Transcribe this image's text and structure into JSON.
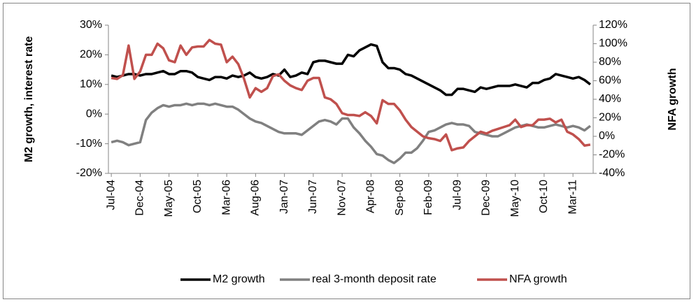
{
  "chart_data": {
    "type": "line",
    "y_label": "M2 growth, interest rate",
    "y2_label": "NFA growth",
    "categories": [
      "Jul-04",
      null,
      null,
      null,
      null,
      "Dec-04",
      null,
      null,
      null,
      null,
      "May-05",
      null,
      null,
      null,
      null,
      "Oct-05",
      null,
      null,
      null,
      null,
      "Mar-06",
      null,
      null,
      null,
      null,
      "Aug-06",
      null,
      null,
      null,
      null,
      "Jan-07",
      null,
      null,
      null,
      null,
      "Jun-07",
      null,
      null,
      null,
      null,
      "Nov-07",
      null,
      null,
      null,
      null,
      "Apr-08",
      null,
      null,
      null,
      null,
      "Sep-08",
      null,
      null,
      null,
      null,
      "Feb-09",
      null,
      null,
      null,
      null,
      "Jul-09",
      null,
      null,
      null,
      null,
      "Dec-09",
      null,
      null,
      null,
      null,
      "May-10",
      null,
      null,
      null,
      null,
      "Oct-10",
      null,
      null,
      null,
      null,
      "Mar-11",
      null,
      null,
      null
    ],
    "series": [
      {
        "name": "M2 growth",
        "color": "#000000",
        "values": [
          13,
          12.5,
          13,
          13.5,
          13.5,
          13,
          13.5,
          13.5,
          14,
          14.5,
          13.5,
          13.5,
          14.5,
          14.5,
          14,
          12.5,
          12,
          11.5,
          12.5,
          12.5,
          12,
          13,
          12.5,
          13,
          14,
          12.5,
          12,
          12.5,
          13.5,
          13,
          15,
          12.5,
          13,
          14,
          13.5,
          17.5,
          18,
          18,
          17.5,
          17,
          17,
          20,
          19.5,
          21.5,
          22.5,
          23.5,
          23,
          17.5,
          15.5,
          15.5,
          15,
          13.5,
          13,
          12,
          11,
          10,
          9,
          8,
          6.5,
          6.5,
          8.5,
          8.5,
          8,
          7.5,
          9,
          8.5,
          9,
          9.5,
          9.5,
          9.5,
          10,
          9.5,
          9,
          10.5,
          10.5,
          11.5,
          12,
          13.5,
          13,
          12.5,
          12,
          12.5,
          11.5,
          10
        ]
      },
      {
        "name": "real 3-month deposit rate",
        "color": "#808080",
        "values": [
          -9.5,
          -9,
          -9.5,
          -10.5,
          -10,
          -9.5,
          -2,
          0.5,
          2,
          3,
          2.5,
          3,
          3,
          3.5,
          3,
          3.5,
          3.5,
          3,
          3.5,
          3,
          2.5,
          2.5,
          1.5,
          0,
          -1.5,
          -2.5,
          -3,
          -4,
          -5,
          -6,
          -6.5,
          -6.5,
          -6.5,
          -7,
          -5.5,
          -4,
          -2.5,
          -2,
          -2.5,
          -3.5,
          -1.5,
          -1.5,
          -4.5,
          -6.5,
          -9,
          -11,
          -13.5,
          -14,
          -15.5,
          -16.5,
          -15,
          -13,
          -13,
          -11.5,
          -9,
          -6,
          -5.5,
          -4.5,
          -3.5,
          -3,
          -3.5,
          -3.5,
          -4,
          -6,
          -6.5,
          -7,
          -7.5,
          -7.5,
          -6.5,
          -5.5,
          -4.5,
          -4,
          -3.5,
          -4,
          -4.5,
          -4.5,
          -4,
          -3.5,
          -4,
          -4.5,
          -4,
          -4.5,
          -5.5,
          -4
        ]
      },
      {
        "name": "NFA growth",
        "color": "#c0504d",
        "axis": "y2",
        "values": [
          63,
          62,
          66,
          98,
          62,
          70,
          88,
          88,
          100,
          95,
          82,
          80,
          98,
          88,
          96,
          97,
          97,
          104,
          100,
          99,
          80,
          86,
          78,
          62,
          42,
          52,
          48,
          52,
          65,
          67,
          60,
          55,
          52,
          50,
          60,
          63,
          63,
          42,
          40,
          35,
          25,
          23,
          23,
          22,
          26,
          22,
          14,
          39,
          35,
          35,
          28,
          18,
          10,
          5,
          0,
          -2,
          -3,
          -5,
          2,
          -15,
          -13,
          -12,
          -5,
          0,
          5,
          3,
          6,
          8,
          10,
          12,
          18,
          10,
          12,
          12,
          18,
          18,
          19,
          15,
          18,
          5,
          2,
          -3,
          -10,
          -9
        ]
      }
    ],
    "ylim": [
      -20,
      30
    ],
    "yticks": [
      {
        "value": -20,
        "label": "-20%"
      },
      {
        "value": -10,
        "label": "-10%"
      },
      {
        "value": 0,
        "label": "0%"
      },
      {
        "value": 10,
        "label": "10%"
      },
      {
        "value": 20,
        "label": "20%"
      },
      {
        "value": 30,
        "label": "30%"
      }
    ],
    "y2lim": [
      -40,
      120
    ],
    "y2ticks": [
      {
        "value": -40,
        "label": "-40%"
      },
      {
        "value": -20,
        "label": "-20%"
      },
      {
        "value": 0,
        "label": "0%"
      },
      {
        "value": 20,
        "label": "20%"
      },
      {
        "value": 40,
        "label": "40%"
      },
      {
        "value": 60,
        "label": "60%"
      },
      {
        "value": 80,
        "label": "80%"
      },
      {
        "value": 100,
        "label": "100%"
      },
      {
        "value": 120,
        "label": "120%"
      }
    ],
    "legend": "bottom",
    "grid": false
  }
}
